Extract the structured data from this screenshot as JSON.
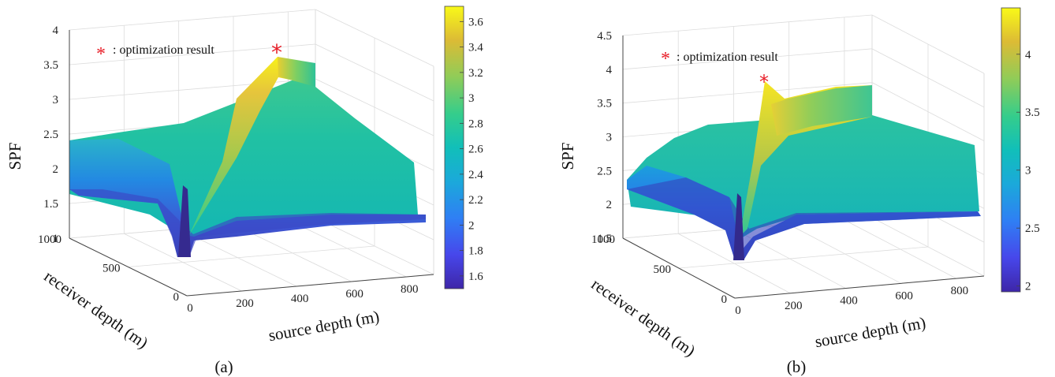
{
  "chart_data": [
    {
      "type": "surface",
      "panel": "(a)",
      "zlabel": "SPF",
      "xlabel": "source depth (m)",
      "ylabel": "receiver depth (m)",
      "xlim": [
        0,
        900
      ],
      "ylim": [
        0,
        1000
      ],
      "zlim": [
        1,
        4
      ],
      "x_ticks": [
        "0",
        "200",
        "400",
        "600",
        "800"
      ],
      "y_ticks": [
        "0",
        "500",
        "1000"
      ],
      "z_ticks": [
        "1",
        "1.5",
        "2",
        "2.5",
        "3",
        "3.5",
        "4"
      ],
      "colorbar": {
        "colormap": "parula",
        "ticks": [
          "1.6",
          "1.8",
          "2",
          "2.2",
          "2.4",
          "2.6",
          "2.8",
          "3",
          "3.2",
          "3.4",
          "3.6"
        ],
        "range": [
          1.5,
          3.72
        ]
      },
      "legend": "optimization result",
      "legend_marker": "*",
      "marker_color": "#e8202a",
      "optimization_result": {
        "source_depth": 200,
        "receiver_depth": 200,
        "SPF": 3.72
      }
    },
    {
      "type": "surface",
      "panel": "(b)",
      "zlabel": "SPF",
      "xlabel": "source depth (m)",
      "ylabel": "receiver depth (m)",
      "xlim": [
        0,
        900
      ],
      "ylim": [
        0,
        1000
      ],
      "zlim": [
        1.5,
        4.5
      ],
      "x_ticks": [
        "0",
        "200",
        "400",
        "600",
        "800"
      ],
      "y_ticks": [
        "0",
        "500",
        "1000"
      ],
      "z_ticks": [
        "1.5",
        "2",
        "2.5",
        "3",
        "3.5",
        "4",
        "4.5"
      ],
      "colorbar": {
        "colormap": "parula",
        "ticks": [
          "2",
          "2.5",
          "3",
          "3.5",
          "4"
        ],
        "range": [
          1.95,
          4.4
        ]
      },
      "legend": "optimization result",
      "legend_marker": "*",
      "marker_color": "#e8202a",
      "optimization_result": {
        "source_depth": 60,
        "receiver_depth": 120,
        "SPF": 3.8
      }
    }
  ]
}
